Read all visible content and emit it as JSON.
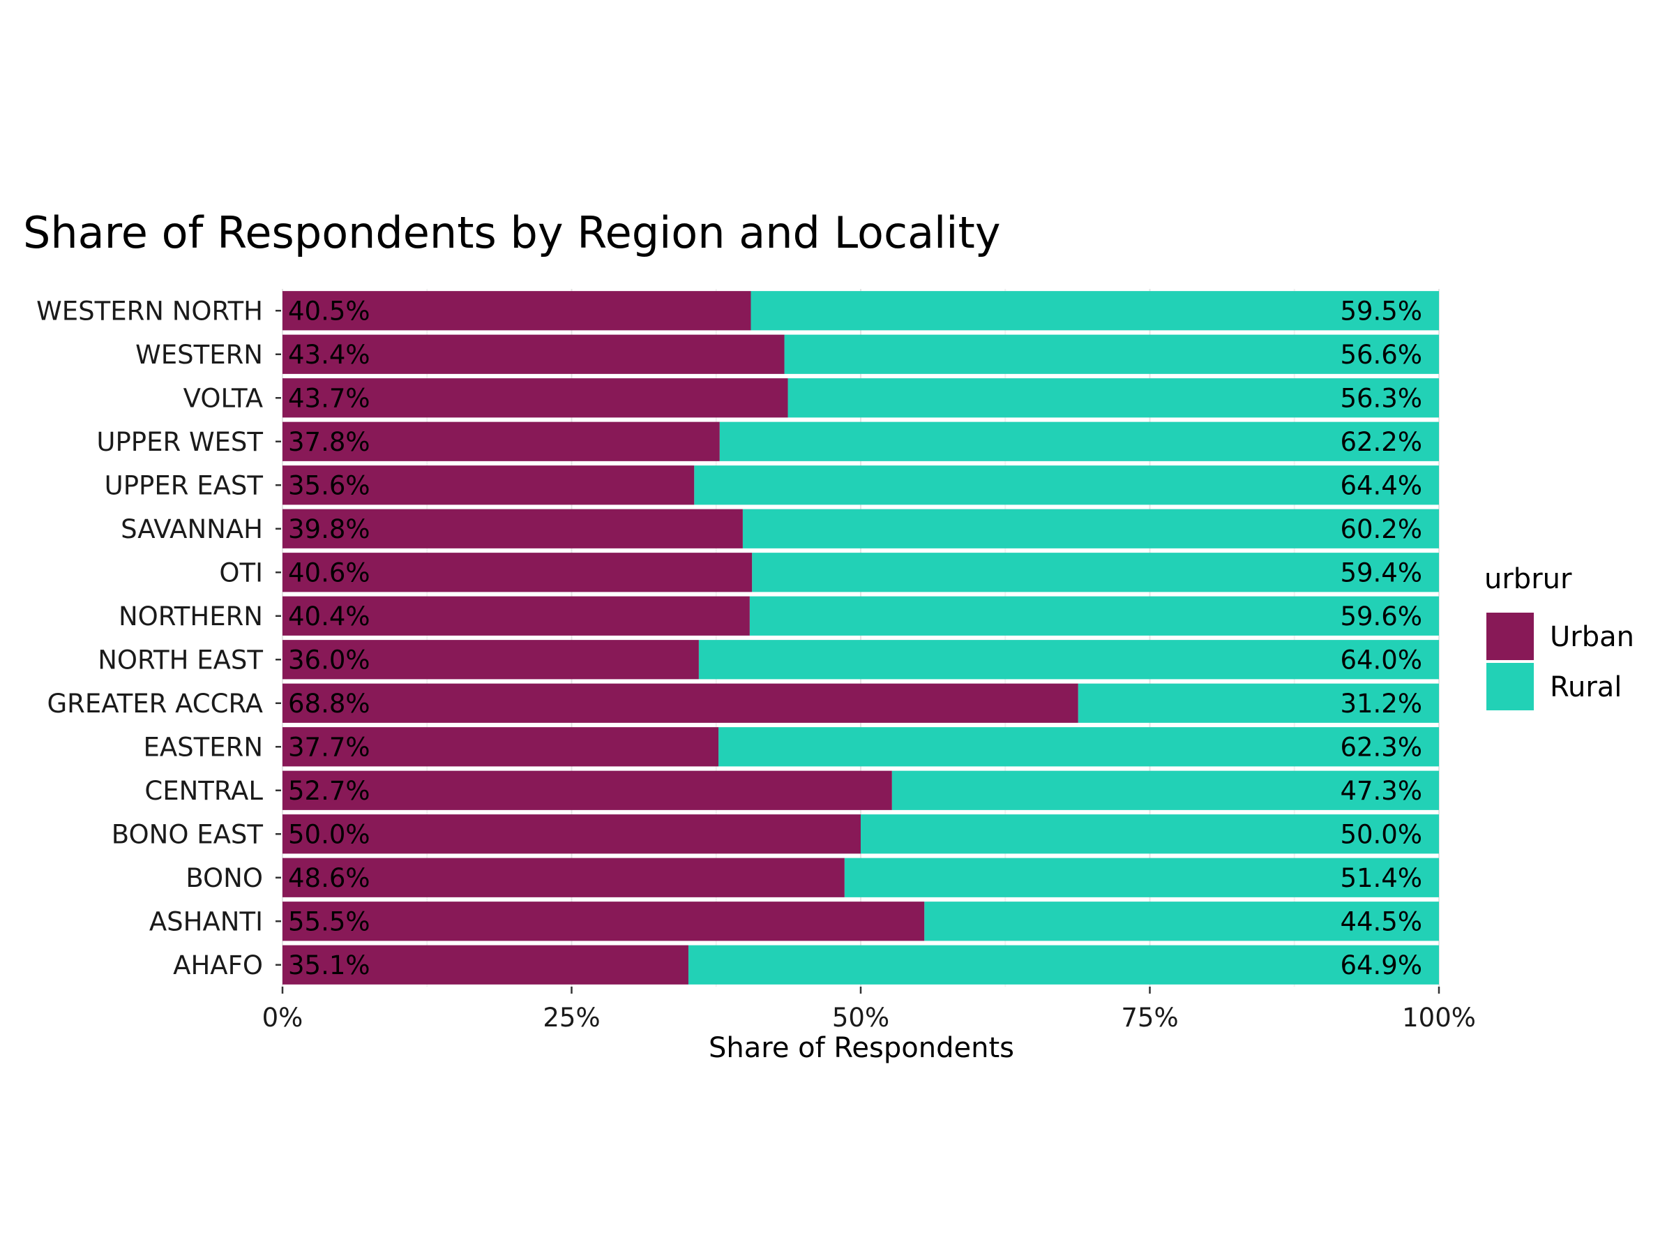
{
  "chart_data": {
    "type": "bar",
    "orientation": "horizontal",
    "stacked": "percent",
    "title": "Share of Respondents by Region and Locality",
    "xlabel": "Share of Respondents",
    "ylabel": "",
    "xlim": [
      0,
      100
    ],
    "x_ticks": [
      "0%",
      "25%",
      "50%",
      "75%",
      "100%"
    ],
    "x_tick_values": [
      0,
      25,
      50,
      75,
      100
    ],
    "grid": true,
    "legend": {
      "title": "urbrur",
      "position": "right",
      "entries": [
        "Urban",
        "Rural"
      ]
    },
    "categories": [
      "WESTERN NORTH",
      "WESTERN",
      "VOLTA",
      "UPPER WEST",
      "UPPER EAST",
      "SAVANNAH",
      "OTI",
      "NORTHERN",
      "NORTH EAST",
      "GREATER ACCRA",
      "EASTERN",
      "CENTRAL",
      "BONO EAST",
      "BONO",
      "ASHANTI",
      "AHAFO"
    ],
    "series": [
      {
        "name": "Urban",
        "color": "#881957",
        "values": [
          40.5,
          43.4,
          43.7,
          37.8,
          35.6,
          39.8,
          40.6,
          40.4,
          36.0,
          68.8,
          37.7,
          52.7,
          50.0,
          48.6,
          55.5,
          35.1
        ],
        "labels": [
          "40.5%",
          "43.4%",
          "43.7%",
          "37.8%",
          "35.6%",
          "39.8%",
          "40.6%",
          "40.4%",
          "36.0%",
          "68.8%",
          "37.7%",
          "52.7%",
          "50.0%",
          "48.6%",
          "55.5%",
          "35.1%"
        ]
      },
      {
        "name": "Rural",
        "color": "#22d1b6",
        "values": [
          59.5,
          56.6,
          56.3,
          62.2,
          64.4,
          60.2,
          59.4,
          59.6,
          64.0,
          31.2,
          62.3,
          47.3,
          50.0,
          51.4,
          44.5,
          64.9
        ],
        "labels": [
          "59.5%",
          "56.6%",
          "56.3%",
          "62.2%",
          "64.4%",
          "60.2%",
          "59.4%",
          "59.6%",
          "64.0%",
          "31.2%",
          "62.3%",
          "47.3%",
          "50.0%",
          "51.4%",
          "44.5%",
          "64.9%"
        ]
      }
    ]
  }
}
